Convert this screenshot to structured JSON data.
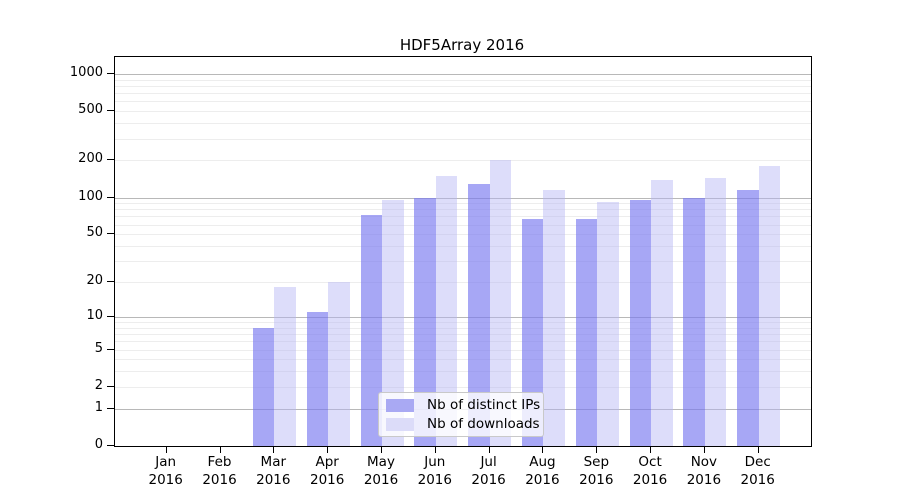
{
  "chart_data": {
    "type": "bar",
    "title": "HDF5Array 2016",
    "categories": [
      "Jan",
      "Feb",
      "Mar",
      "Apr",
      "May",
      "Jun",
      "Jul",
      "Aug",
      "Sep",
      "Oct",
      "Nov",
      "Dec"
    ],
    "x_tick_second_line": "2016",
    "series": [
      {
        "name": "Nb of distinct IPs",
        "values": [
          0,
          0,
          8,
          11,
          72,
          99,
          128,
          67,
          67,
          96,
          100,
          115
        ],
        "color": "#a9a9f3",
        "rgba": "rgba(120,120,240,0.65)"
      },
      {
        "name": "Nb of downloads",
        "values": [
          0,
          0,
          18,
          20,
          96,
          150,
          200,
          115,
          92,
          140,
          145,
          180
        ],
        "color": "#dcdcf9",
        "rgba": "rgba(180,180,245,0.45)"
      }
    ],
    "yticks": [
      0,
      1,
      2,
      5,
      10,
      20,
      50,
      100,
      200,
      500,
      1000
    ],
    "y_scale": "log1p",
    "ylim": [
      0,
      1000
    ],
    "grid": "horizontal, minor lines at 1-9 per decade, major at powers of 10",
    "legend_position": "bottom-center-inside",
    "colors": {
      "axis": "#000000",
      "major_grid": "#b8b8b8",
      "minor_grid": "#ededed",
      "background": "#ffffff"
    }
  }
}
